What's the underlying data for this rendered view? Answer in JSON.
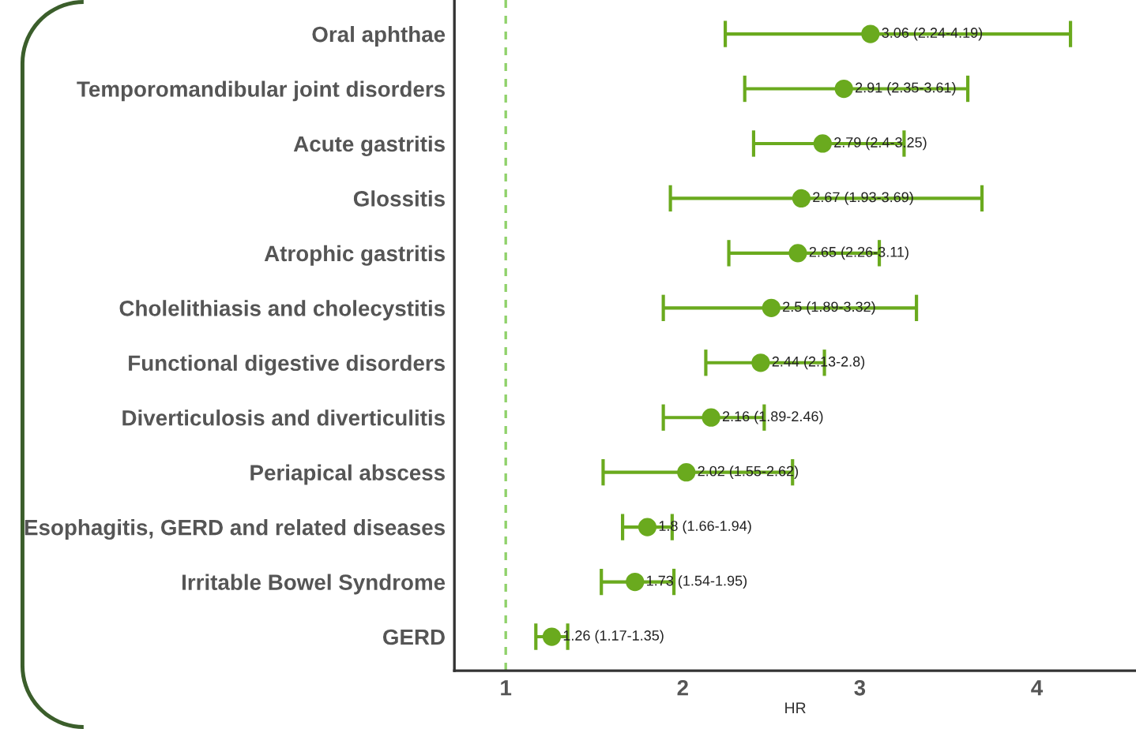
{
  "chart_data": {
    "type": "scatter",
    "orientation": "horizontal",
    "xlabel": "HR",
    "categories": [
      "Oral aphthae",
      "Temporomandibular joint disorders",
      "Acute gastritis",
      "Glossitis",
      "Atrophic gastritis",
      "Cholelithiasis and cholecystitis",
      "Functional digestive disorders",
      "Diverticulosis and diverticulitis",
      "Periapical abscess",
      "Esophagitis, GERD and related diseases",
      "Irritable Bowel Syndrome",
      "GERD"
    ],
    "series": [
      {
        "color": "#6aaa1e",
        "values": [
          3.06,
          2.91,
          2.79,
          2.67,
          2.65,
          2.5,
          2.44,
          2.16,
          2.02,
          1.8,
          1.73,
          1.26
        ],
        "errors": [
          [
            2.24,
            4.19
          ],
          [
            2.35,
            3.61
          ],
          [
            2.4,
            3.25
          ],
          [
            1.93,
            3.69
          ],
          [
            2.26,
            3.11
          ],
          [
            1.89,
            3.32
          ],
          [
            2.13,
            2.8
          ],
          [
            1.89,
            2.46
          ],
          [
            1.55,
            2.62
          ],
          [
            1.66,
            1.94
          ],
          [
            1.54,
            1.95
          ],
          [
            1.17,
            1.35
          ]
        ],
        "value_labels": [
          "3.06 (2.24-4.19)",
          "2.91 (2.35-3.61)",
          "2.79 (2.4-3.25)",
          "2.67 (1.93-3.69)",
          "2.65 (2.26-3.11)",
          "2.5 (1.89-3.32)",
          "2.44 (2.13-2.8)",
          "2.16 (1.89-2.46)",
          "2.02 (1.55-2.62)",
          "1.8 (1.66-1.94)",
          "1.73 (1.54-1.95)",
          "1.26 (1.17-1.35)"
        ]
      }
    ],
    "xlim": [
      0.71,
      4.56
    ],
    "xticks": [
      1,
      2,
      3,
      4
    ],
    "ref_lines": [
      {
        "axis": "x",
        "value": 1,
        "color": "#8fd16a",
        "line_style": "dashed"
      }
    ],
    "marker": "circle",
    "grid": false,
    "legend": false
  }
}
